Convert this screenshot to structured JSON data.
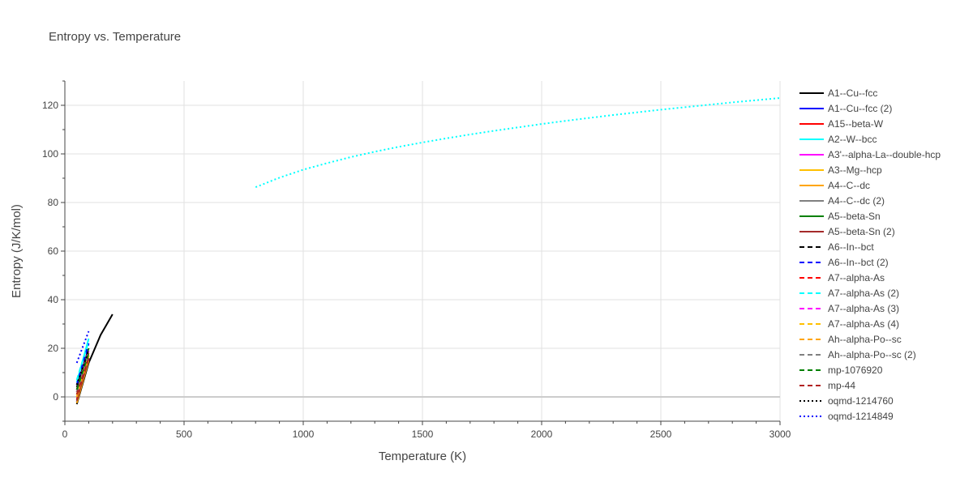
{
  "chart_data": {
    "type": "line",
    "title": "Entropy vs. Temperature",
    "xlabel": "Temperature (K)",
    "ylabel": "Entropy (J/K/mol)",
    "xlim": [
      0,
      3000
    ],
    "ylim": [
      -10,
      130
    ],
    "xticks": [
      0,
      500,
      1000,
      1500,
      2000,
      2500,
      3000
    ],
    "yticks": [
      0,
      20,
      40,
      60,
      80,
      100,
      120
    ],
    "grid": true,
    "legend_position": "right",
    "series": [
      {
        "name": "A1--Cu--fcc",
        "color": "#000000",
        "dash": "solid",
        "x": [
          50,
          100,
          150,
          200
        ],
        "y": [
          -3,
          14,
          25.5,
          34
        ]
      },
      {
        "name": "A1--Cu--fcc (2)",
        "color": "#0000ff",
        "dash": "solid",
        "x": [
          50,
          100
        ],
        "y": [
          -2,
          16
        ]
      },
      {
        "name": "A15--beta-W",
        "color": "#ff0000",
        "dash": "solid",
        "x": [
          50,
          100
        ],
        "y": [
          -1,
          17
        ]
      },
      {
        "name": "A2--W--bcc",
        "color": "#00ffff",
        "dash": "solid",
        "x": [
          50,
          100
        ],
        "y": [
          6,
          24
        ]
      },
      {
        "name": "A3'--alpha-La--double-hcp",
        "color": "#ff00ff",
        "dash": "solid",
        "x": [
          50,
          100
        ],
        "y": [
          2,
          19
        ]
      },
      {
        "name": "A3--Mg--hcp",
        "color": "#ffc000",
        "dash": "solid",
        "x": [
          50,
          100
        ],
        "y": [
          1,
          18
        ]
      },
      {
        "name": "A4--C--dc",
        "color": "#ffa500",
        "dash": "solid",
        "x": [
          50,
          100
        ],
        "y": [
          -2.5,
          15
        ]
      },
      {
        "name": "A4--C--dc (2)",
        "color": "#808080",
        "dash": "solid",
        "x": [
          50,
          100
        ],
        "y": [
          0,
          16
        ]
      },
      {
        "name": "A5--beta-Sn",
        "color": "#008000",
        "dash": "solid",
        "x": [
          50,
          100
        ],
        "y": [
          3,
          20
        ]
      },
      {
        "name": "A5--beta-Sn (2)",
        "color": "#a52a2a",
        "dash": "solid",
        "x": [
          50,
          100
        ],
        "y": [
          -1.5,
          16
        ]
      },
      {
        "name": "A6--In--bct",
        "color": "#000000",
        "dash": "dash",
        "x": [
          50,
          100
        ],
        "y": [
          4,
          20
        ]
      },
      {
        "name": "A6--In--bct (2)",
        "color": "#0000ff",
        "dash": "dash",
        "x": [
          50,
          100
        ],
        "y": [
          5,
          22
        ]
      },
      {
        "name": "A7--alpha-As",
        "color": "#ff0000",
        "dash": "dash",
        "x": [
          50,
          100
        ],
        "y": [
          2,
          18
        ]
      },
      {
        "name": "A7--alpha-As (2)",
        "color": "#00ffff",
        "dash": "dash",
        "x": [
          50,
          100
        ],
        "y": [
          7,
          23
        ]
      },
      {
        "name": "A7--alpha-As (3)",
        "color": "#ff00ff",
        "dash": "dash",
        "x": [
          50,
          100
        ],
        "y": [
          3,
          19
        ]
      },
      {
        "name": "A7--alpha-As (4)",
        "color": "#ffc000",
        "dash": "dash",
        "x": [
          50,
          100
        ],
        "y": [
          1,
          17
        ]
      },
      {
        "name": "Ah--alpha-Po--sc",
        "color": "#ffa500",
        "dash": "dash",
        "x": [
          50,
          100
        ],
        "y": [
          0,
          17
        ]
      },
      {
        "name": "Ah--alpha-Po--sc (2)",
        "color": "#808080",
        "dash": "dash",
        "x": [
          50,
          100
        ],
        "y": [
          2,
          18
        ]
      },
      {
        "name": "mp-1076920",
        "color": "#008000",
        "dash": "dash",
        "x": [
          50,
          100
        ],
        "y": [
          3,
          18
        ]
      },
      {
        "name": "mp-44",
        "color": "#b22222",
        "dash": "dash",
        "x": [
          50,
          100
        ],
        "y": [
          1,
          16
        ]
      },
      {
        "name": "oqmd-1214760",
        "color": "#000000",
        "dash": "dot",
        "x": [
          50,
          75,
          100
        ],
        "y": [
          5,
          12,
          19
        ]
      },
      {
        "name": "oqmd-1214849",
        "color": "#0000ff",
        "dash": "dot",
        "x": [
          50,
          75,
          100
        ],
        "y": [
          14,
          20.5,
          27
        ]
      },
      {
        "name": "A2--W--bcc (high T)",
        "legend": false,
        "color": "#00ffff",
        "dash": "dot",
        "x": [
          800,
          900,
          1000,
          1100,
          1200,
          1300,
          1400,
          1500,
          1600,
          1700,
          1800,
          1900,
          2000,
          2100,
          2200,
          2300,
          2400,
          2500,
          2600,
          2700,
          2800,
          2900,
          3000
        ],
        "y": [
          86.3,
          90.2,
          93.5,
          96.2,
          98.7,
          100.9,
          102.9,
          104.7,
          106.4,
          108.0,
          109.5,
          110.9,
          112.3,
          113.6,
          114.8,
          116.0,
          117.1,
          118.2,
          119.2,
          120.2,
          121.2,
          122.1,
          123.0
        ]
      }
    ]
  }
}
